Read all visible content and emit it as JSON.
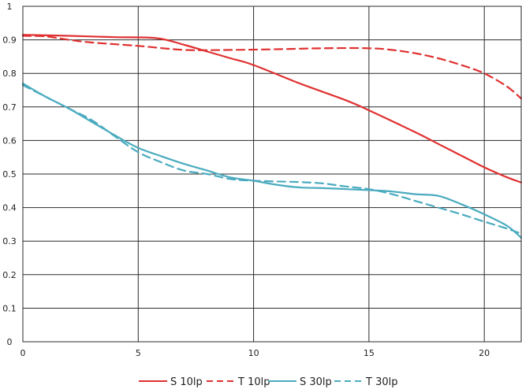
{
  "chart_data": {
    "type": "line",
    "title": "",
    "xlabel": "",
    "ylabel": "",
    "xlim": [
      0,
      21.6
    ],
    "ylim": [
      0,
      1
    ],
    "x_ticks": [
      0,
      5,
      10,
      15,
      20
    ],
    "x_tick_labels": [
      "0",
      "5",
      "10",
      "15",
      "20"
    ],
    "y_ticks": [
      0,
      0.1,
      0.2,
      0.3,
      0.4,
      0.5,
      0.6,
      0.7,
      0.8,
      0.9,
      1
    ],
    "y_tick_labels": [
      "0",
      "0.1",
      "0.2",
      "0.3",
      "0.4",
      "0.5",
      "0.6",
      "0.7",
      "0.8",
      "0.9",
      "1"
    ],
    "grid": true,
    "legend_position": "bottom-center",
    "series": [
      {
        "name": "S 10lp",
        "color": "#e03030",
        "dash": "solid",
        "points": [
          [
            0,
            0.915
          ],
          [
            2,
            0.912
          ],
          [
            4,
            0.908
          ],
          [
            5.8,
            0.905
          ],
          [
            7,
            0.885
          ],
          [
            8,
            0.865
          ],
          [
            9,
            0.845
          ],
          [
            10,
            0.825
          ],
          [
            12,
            0.77
          ],
          [
            14,
            0.72
          ],
          [
            15,
            0.69
          ],
          [
            17,
            0.625
          ],
          [
            18,
            0.59
          ],
          [
            19,
            0.555
          ],
          [
            20,
            0.52
          ],
          [
            21,
            0.49
          ],
          [
            21.6,
            0.475
          ]
        ]
      },
      {
        "name": "T 10lp",
        "color": "#e03030",
        "dash": "dashed",
        "points": [
          [
            0,
            0.912
          ],
          [
            1,
            0.91
          ],
          [
            2,
            0.9
          ],
          [
            3,
            0.892
          ],
          [
            5,
            0.882
          ],
          [
            7,
            0.87
          ],
          [
            9,
            0.87
          ],
          [
            11,
            0.872
          ],
          [
            13,
            0.875
          ],
          [
            15,
            0.875
          ],
          [
            16,
            0.87
          ],
          [
            17,
            0.86
          ],
          [
            18,
            0.845
          ],
          [
            19,
            0.825
          ],
          [
            20,
            0.8
          ],
          [
            21,
            0.76
          ],
          [
            21.6,
            0.725
          ]
        ]
      },
      {
        "name": "S 30lp",
        "color": "#4aabbf",
        "dash": "solid",
        "points": [
          [
            0,
            0.77
          ],
          [
            1,
            0.73
          ],
          [
            2,
            0.695
          ],
          [
            3,
            0.655
          ],
          [
            4,
            0.615
          ],
          [
            5,
            0.578
          ],
          [
            6,
            0.553
          ],
          [
            7,
            0.53
          ],
          [
            8,
            0.51
          ],
          [
            9,
            0.49
          ],
          [
            10,
            0.48
          ],
          [
            11,
            0.468
          ],
          [
            12,
            0.46
          ],
          [
            13,
            0.458
          ],
          [
            14,
            0.455
          ],
          [
            15,
            0.452
          ],
          [
            16,
            0.448
          ],
          [
            17,
            0.44
          ],
          [
            18,
            0.435
          ],
          [
            19,
            0.41
          ],
          [
            20,
            0.38
          ],
          [
            21,
            0.345
          ],
          [
            21.6,
            0.31
          ]
        ]
      },
      {
        "name": "T 30lp",
        "color": "#4aabbf",
        "dash": "dashed",
        "points": [
          [
            0,
            0.765
          ],
          [
            1,
            0.73
          ],
          [
            2,
            0.695
          ],
          [
            3,
            0.66
          ],
          [
            4,
            0.612
          ],
          [
            5,
            0.565
          ],
          [
            6,
            0.535
          ],
          [
            7,
            0.51
          ],
          [
            8,
            0.5
          ],
          [
            9,
            0.485
          ],
          [
            10,
            0.48
          ],
          [
            11,
            0.478
          ],
          [
            12,
            0.476
          ],
          [
            13,
            0.472
          ],
          [
            14,
            0.463
          ],
          [
            15,
            0.455
          ],
          [
            16,
            0.44
          ],
          [
            17,
            0.42
          ],
          [
            18,
            0.4
          ],
          [
            19,
            0.38
          ],
          [
            20,
            0.358
          ],
          [
            21,
            0.337
          ],
          [
            21.6,
            0.322
          ]
        ]
      }
    ]
  }
}
